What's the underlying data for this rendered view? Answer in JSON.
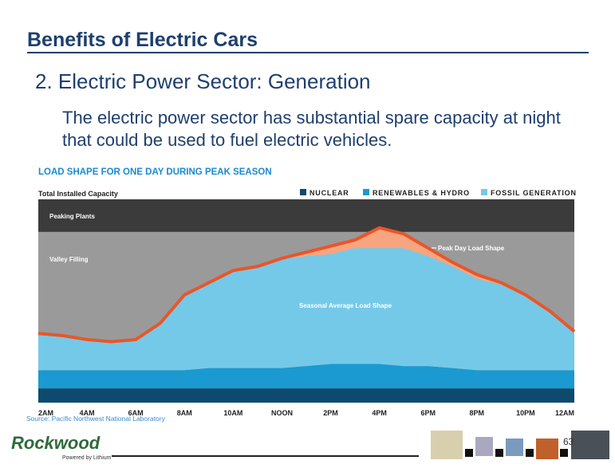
{
  "slide": {
    "title": "Benefits of Electric Cars",
    "heading": "2.  Electric Power Sector:  Generation",
    "body": "The electric power sector has substantial spare capacity at night that could be used to fuel electric vehicles.",
    "source": "Source: Pacific Northwest National Laboratory",
    "page_number": "63",
    "logo": "Rockwood",
    "logo_tagline": "Powered by Lithium"
  },
  "chart_data": {
    "type": "area",
    "title": "LOAD SHAPE FOR ONE DAY DURING PEAK SEASON",
    "capacity_label": "Total Installed Capacity",
    "capacity": 100,
    "peaking_label": "Peaking Plants",
    "peaking_level": 84,
    "valley_label": "Valley Filling",
    "seasonal_label": "Seasonal Average Load Shape",
    "categories": [
      "2AM",
      null,
      "4AM",
      null,
      "6AM",
      null,
      "8AM",
      null,
      "10AM",
      null,
      "NOON",
      null,
      "2PM",
      null,
      "4PM",
      null,
      "6PM",
      null,
      "8PM",
      null,
      "10PM",
      null,
      "12AM"
    ],
    "ylim": [
      0,
      100
    ],
    "stacked": true,
    "series": [
      {
        "name": "NUCLEAR",
        "color": "#0d4a6e",
        "values": [
          7,
          7,
          7,
          7,
          7,
          7,
          7,
          7,
          7,
          7,
          7,
          7,
          7,
          7,
          7,
          7,
          7,
          7,
          7,
          7,
          7,
          7,
          7
        ]
      },
      {
        "name": "RENEWABLES & HYDRO",
        "color": "#1a9ad0",
        "values": [
          9,
          9,
          9,
          9,
          9,
          9,
          9,
          10,
          10,
          10,
          10,
          11,
          12,
          12,
          12,
          11,
          11,
          10,
          9,
          9,
          9,
          9,
          9
        ]
      },
      {
        "name": "FOSSIL GENERATION",
        "color": "#74c9e9",
        "values": [
          18,
          17,
          15,
          14,
          15,
          23,
          37,
          42,
          48,
          50,
          54,
          54,
          54,
          57,
          57,
          58,
          54,
          50,
          45,
          42,
          36,
          28,
          19
        ]
      }
    ],
    "peak_line": {
      "name": "Peak Day Load Shape",
      "color": "#e8562a",
      "fill": "#f6a57f",
      "values": [
        34,
        33,
        31,
        30,
        31,
        39,
        53,
        59,
        65,
        67,
        71,
        74,
        77,
        80,
        86,
        83,
        76,
        69,
        63,
        59,
        53,
        45,
        35
      ]
    }
  }
}
